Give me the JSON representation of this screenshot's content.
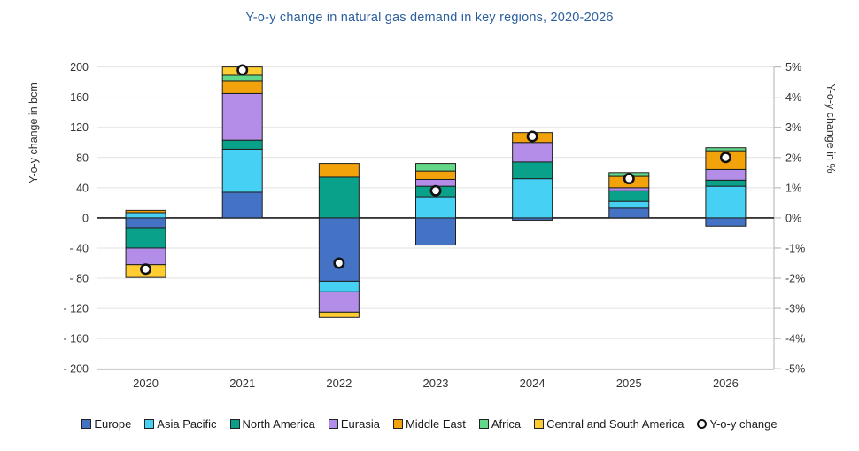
{
  "title": "Y-o-y change in natural gas demand in key regions, 2020-2026",
  "title_color": "#2D5F9E",
  "chart_data": {
    "type": "bar",
    "stacked": true,
    "grid": true,
    "legend_position": "bottom",
    "categories": [
      "2020",
      "2021",
      "2022",
      "2023",
      "2024",
      "2025",
      "2026"
    ],
    "series": [
      {
        "name": "Europe",
        "color": "#4472C4",
        "values": [
          -13,
          34,
          -84,
          -36,
          -3,
          13,
          -11
        ]
      },
      {
        "name": "Asia Pacific",
        "color": "#45D0F4",
        "values": [
          7,
          57,
          -14,
          28,
          52,
          9,
          42
        ]
      },
      {
        "name": "North America",
        "color": "#09A189",
        "values": [
          -27,
          12,
          54,
          14,
          22,
          14,
          8
        ]
      },
      {
        "name": "Eurasia",
        "color": "#B38DE8",
        "values": [
          -22,
          62,
          -27,
          9,
          26,
          4,
          14
        ]
      },
      {
        "name": "Middle East",
        "color": "#F2A30B",
        "values": [
          3,
          17,
          18,
          11,
          13,
          15,
          25
        ]
      },
      {
        "name": "Africa",
        "color": "#62D989",
        "values": [
          0,
          7,
          0,
          10,
          0,
          5,
          4
        ]
      },
      {
        "name": "Central and South America",
        "color": "#FFCC32",
        "values": [
          -17,
          11,
          -7,
          0,
          0,
          0,
          0
        ]
      }
    ],
    "marker_series": {
      "name": "Y-o-y change",
      "values_pct": [
        -1.7,
        4.9,
        -1.5,
        0.9,
        2.7,
        1.3,
        2.0
      ],
      "fill": "#FFFFFF",
      "stroke": "#111111"
    },
    "left_axis": {
      "label": "Y-o-y change in bcm",
      "min": -200,
      "max": 200,
      "step": 40,
      "tick_labels": [
        "200",
        "160",
        "120",
        "80",
        "40",
        "0",
        "- 40",
        "- 80",
        "- 120",
        "- 160",
        "- 200"
      ]
    },
    "right_axis": {
      "label": "Y-o-y change in %",
      "min": -5,
      "max": 5,
      "step": 1,
      "tick_labels": [
        "5%",
        "4%",
        "3%",
        "2%",
        "1%",
        "0%",
        "-1%",
        "-2%",
        "-3%",
        "-4%",
        "-5%"
      ]
    }
  },
  "colors": {
    "grid": "#E2E2E2",
    "zero_line": "#1A1A1A",
    "axis_line": "#BDBDBD",
    "tick_text": "#333333",
    "segment_border": "#1F1F1F"
  }
}
